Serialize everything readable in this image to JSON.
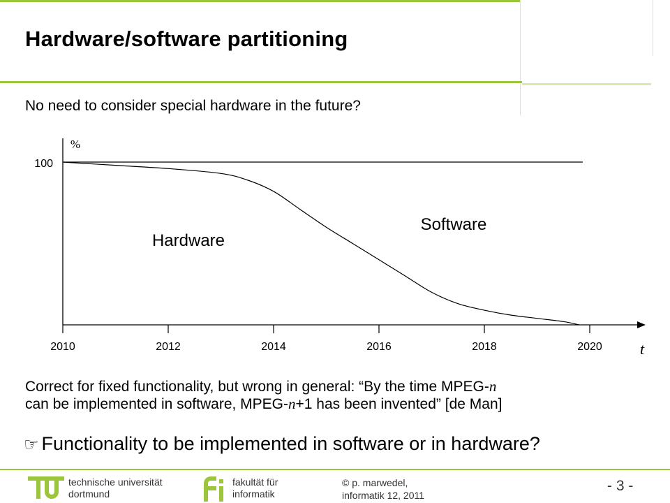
{
  "slide": {
    "title": "Hardware/software partitioning",
    "subtitle": "No need to consider special hardware in the future?",
    "body_line1_pre": "Correct for fixed functionality, but wrong in general: “By the time MPEG-",
    "body_line1_var": "n",
    "body_line2_pre": "can be implemented in software, MPEG-",
    "body_line2_var": "n",
    "body_line2_post": "+1 has been invented” [de Man]",
    "conclusion_icon": "pointing-hand-icon",
    "conclusion": "Functionality to be implemented in software or in hardware?"
  },
  "chart_data": {
    "type": "area",
    "ylabel": "%",
    "xlabel": "t",
    "ytick": "100",
    "ylim": [
      0,
      100
    ],
    "xlim": [
      2010,
      2020
    ],
    "x_ticks": [
      "2010",
      "2012",
      "2014",
      "2016",
      "2018",
      "2020"
    ],
    "region_labels": {
      "lower": "Hardware",
      "upper": "Software"
    },
    "series": [
      {
        "x": [
          2010,
          2011,
          2012,
          2013,
          2013.5,
          2014,
          2014.5,
          2015,
          2015.5,
          2016,
          2016.5,
          2017,
          2017.5,
          2018,
          2018.5,
          2019,
          2019.5,
          2019.8
        ],
        "values": [
          100,
          98,
          96,
          93,
          89,
          82,
          71,
          60,
          50,
          40,
          30,
          20,
          13,
          9,
          6,
          4,
          2,
          0
        ]
      }
    ],
    "grid": false
  },
  "footer": {
    "tu_line1": "technische universität",
    "tu_line2": "dortmund",
    "fi_line1": "fakultät für",
    "fi_line2": "informatik",
    "copyright_symbol": "©",
    "author_line1": "p. marwedel,",
    "author_line2": "informatik 12,  2011",
    "page": "-  3 -",
    "accent": "#9bc53a"
  }
}
